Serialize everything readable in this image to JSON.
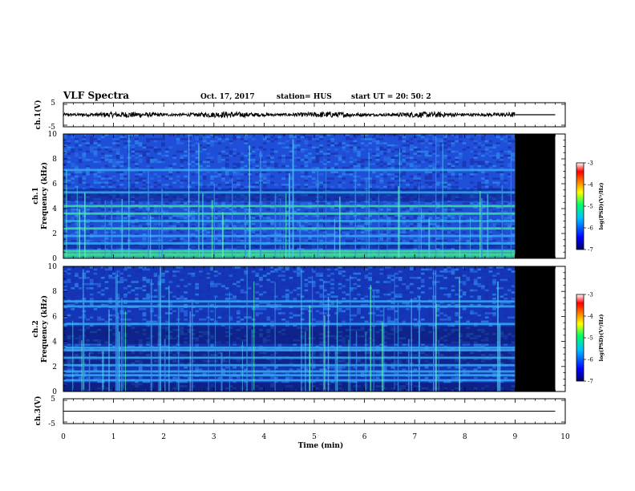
{
  "header": {
    "title": "VLF Spectra",
    "date": "Oct. 17, 2017",
    "station": "station= HUS",
    "start": "start  UT  =   20: 50: 2"
  },
  "colors": {
    "background": "#ffffff",
    "spectrogram_base": "#1438c8",
    "no_data": "#000000",
    "colorbar": [
      "#000066",
      "#0000ff",
      "#00bfff",
      "#00ff66",
      "#ffff00",
      "#ff8000",
      "#ff0000",
      "#ffffff"
    ]
  },
  "chart_data": [
    {
      "type": "line",
      "panel": "ch1-waveform",
      "ylabel": "ch.1(V)",
      "ylim": [
        -5,
        5
      ],
      "yticks": [
        "5",
        "-5"
      ],
      "xlim": [
        0,
        10
      ],
      "trace": {
        "x_end": 9.0,
        "amplitude_approx": 0.5,
        "flat_after": [
          9.0,
          9.8
        ]
      }
    },
    {
      "type": "heatmap",
      "panel": "ch1-spectrogram",
      "ylabel": "ch.1",
      "ylabel2": "Frequency  (kHz)",
      "ylim": [
        0,
        10
      ],
      "yticks": [
        "0",
        "2",
        "4",
        "6",
        "8",
        "10"
      ],
      "xlim": [
        0,
        10
      ],
      "data_end_min": 9.0,
      "no_data_range_min": [
        9.0,
        9.8
      ],
      "bands_khz": [
        0.3,
        0.6,
        1.2,
        1.8,
        2.4,
        3.0,
        3.6,
        4.2,
        5.3,
        7.1
      ],
      "colorbar": {
        "label": "log(PSD)(V²/Hz)",
        "range": [
          -7,
          -3
        ],
        "ticks": [
          "-3",
          "-4",
          "-5",
          "-6",
          "-7"
        ]
      }
    },
    {
      "type": "heatmap",
      "panel": "ch2-spectrogram",
      "ylabel": "ch.2",
      "ylabel2": "Frequency  (kHz)",
      "ylim": [
        0,
        10
      ],
      "yticks": [
        "0",
        "2",
        "4",
        "6",
        "8",
        "10"
      ],
      "xlim": [
        0,
        10
      ],
      "data_end_min": 9.0,
      "no_data_range_min": [
        9.0,
        9.8
      ],
      "bands_khz": [
        0.9,
        1.3,
        1.6,
        2.1,
        2.7,
        3.3,
        3.5,
        5.4,
        6.8,
        7.2
      ],
      "colorbar": {
        "label": "log(PSD)(V²/Hz)",
        "range": [
          -7,
          -3
        ],
        "ticks": [
          "-3",
          "-4",
          "-5",
          "-6",
          "-7"
        ]
      }
    },
    {
      "type": "line",
      "panel": "ch3-waveform",
      "ylabel": "ch.3(V)",
      "ylim": [
        -5,
        5
      ],
      "yticks": [
        "5",
        "-5"
      ],
      "xlim": [
        0,
        10
      ],
      "trace": {
        "x_end": 9.8,
        "amplitude_approx": 0,
        "level": 0
      }
    }
  ],
  "xaxis": {
    "label": "Time  (min)",
    "range": [
      0,
      10
    ],
    "ticks": [
      "0",
      "1",
      "2",
      "3",
      "4",
      "5",
      "6",
      "7",
      "8",
      "9",
      "10"
    ]
  }
}
